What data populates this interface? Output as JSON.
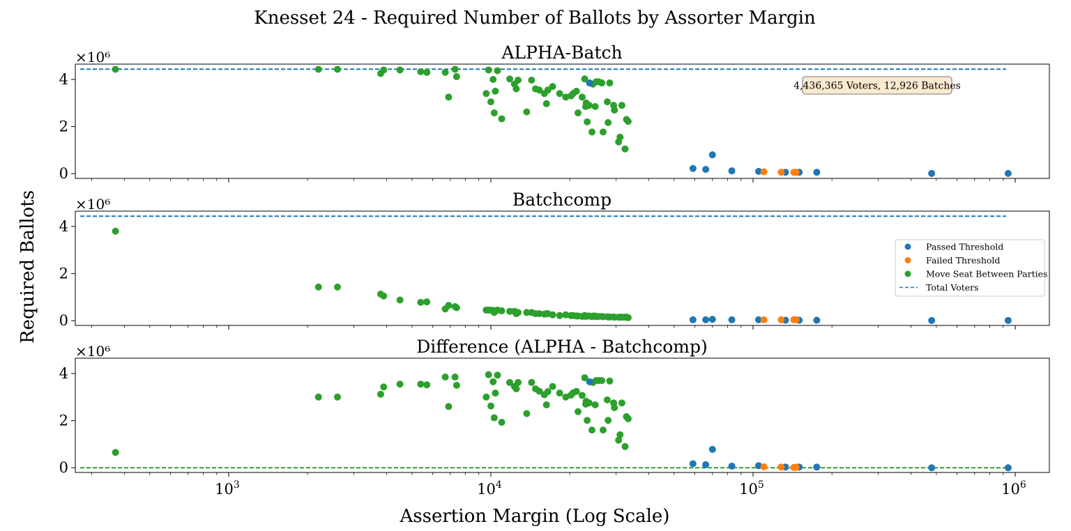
{
  "figure": {
    "title": "Knesset 24 - Required Number of Ballots by Assorter Margin",
    "xlabel": "Assertion Margin (Log Scale)",
    "ylabel": "Required Ballots",
    "colors": {
      "passed": "#1f77b4",
      "failed": "#ff7f0e",
      "move_seat": "#2ca02c",
      "total_line": "#1f77b4",
      "zero_line": "#2ca02c"
    },
    "legend": {
      "passed": "Passed Threshold",
      "failed": "Failed Threshold",
      "move_seat": "Move Seat Between Parties",
      "total_voters": "Total Voters"
    },
    "annotation": "4,436,365 Voters, 12,926 Batches",
    "y_multiplier": "×10⁶",
    "x_ticks": [
      {
        "base": "10",
        "exp": "3"
      },
      {
        "base": "10",
        "exp": "4"
      },
      {
        "base": "10",
        "exp": "5"
      },
      {
        "base": "10",
        "exp": "6"
      }
    ],
    "y_ticks": [
      "0",
      "2",
      "4"
    ]
  },
  "chart_data": [
    {
      "type": "scatter",
      "title": "ALPHA-Batch",
      "x_scale": "log",
      "xlim": [
        260,
        1350000
      ],
      "ylim": [
        -0.2,
        4.65
      ],
      "y_units": "×10^6 ballots",
      "reference_line": {
        "label": "Total Voters",
        "y": 4.436,
        "style": "dashed"
      },
      "annotation": "4,436,365 Voters, 12,926 Batches",
      "series": [
        {
          "name": "Move Seat Between Parties",
          "points": [
            [
              370,
              4.43
            ],
            [
              2200,
              4.43
            ],
            [
              2600,
              4.43
            ],
            [
              3800,
              4.25
            ],
            [
              3900,
              4.4
            ],
            [
              4500,
              4.4
            ],
            [
              5400,
              4.33
            ],
            [
              5700,
              4.3
            ],
            [
              6700,
              4.3
            ],
            [
              6900,
              3.25
            ],
            [
              7300,
              4.43
            ],
            [
              7400,
              4.12
            ],
            [
              9600,
              3.4
            ],
            [
              9800,
              4.4
            ],
            [
              10000,
              3.05
            ],
            [
              10200,
              4.0
            ],
            [
              10300,
              2.58
            ],
            [
              10400,
              3.5
            ],
            [
              10600,
              4.37
            ],
            [
              11000,
              2.33
            ],
            [
              11800,
              4.02
            ],
            [
              12300,
              3.8
            ],
            [
              12500,
              3.6
            ],
            [
              12700,
              3.97
            ],
            [
              13700,
              2.62
            ],
            [
              14300,
              3.97
            ],
            [
              14800,
              3.6
            ],
            [
              15300,
              3.55
            ],
            [
              16000,
              3.4
            ],
            [
              16300,
              2.97
            ],
            [
              16500,
              3.55
            ],
            [
              17200,
              3.7
            ],
            [
              18300,
              3.4
            ],
            [
              19300,
              3.25
            ],
            [
              20200,
              3.3
            ],
            [
              20600,
              3.4
            ],
            [
              21200,
              3.5
            ],
            [
              21500,
              2.58
            ],
            [
              22300,
              3.25
            ],
            [
              22800,
              4.02
            ],
            [
              23000,
              2.85
            ],
            [
              23100,
              3.0
            ],
            [
              23300,
              2.2
            ],
            [
              23700,
              2.9
            ],
            [
              24300,
              1.77
            ],
            [
              24500,
              3.8
            ],
            [
              25000,
              2.85
            ],
            [
              25200,
              3.9
            ],
            [
              25800,
              3.9
            ],
            [
              26500,
              3.85
            ],
            [
              26800,
              1.77
            ],
            [
              27800,
              3.05
            ],
            [
              28000,
              2.17
            ],
            [
              28400,
              3.85
            ],
            [
              29400,
              2.9
            ],
            [
              29600,
              2.7
            ],
            [
              30700,
              1.35
            ],
            [
              31100,
              1.55
            ],
            [
              31600,
              2.9
            ],
            [
              32500,
              1.05
            ],
            [
              32900,
              2.3
            ],
            [
              33400,
              2.22
            ]
          ]
        },
        {
          "name": "Passed Threshold",
          "points": [
            [
              23800,
              3.85
            ],
            [
              59000,
              0.22
            ],
            [
              66000,
              0.18
            ],
            [
              70000,
              0.8
            ],
            [
              83000,
              0.12
            ],
            [
              105000,
              0.1
            ],
            [
              133000,
              0.06
            ],
            [
              150000,
              0.06
            ],
            [
              175000,
              0.06
            ],
            [
              480000,
              0.01
            ],
            [
              940000,
              0.01
            ]
          ]
        },
        {
          "name": "Failed Threshold",
          "points": [
            [
              110000,
              0.08
            ],
            [
              128000,
              0.06
            ],
            [
              143000,
              0.06
            ],
            [
              146000,
              0.06
            ]
          ]
        }
      ]
    },
    {
      "type": "scatter",
      "title": "Batchcomp",
      "x_scale": "log",
      "xlim": [
        260,
        1350000
      ],
      "ylim": [
        -0.2,
        4.65
      ],
      "y_units": "×10^6 ballots",
      "reference_line": {
        "label": "Total Voters",
        "y": 4.436,
        "style": "dashed"
      },
      "legend_position": "right",
      "series": [
        {
          "name": "Move Seat Between Parties",
          "points": [
            [
              370,
              3.8
            ],
            [
              2200,
              1.43
            ],
            [
              2600,
              1.43
            ],
            [
              3800,
              1.13
            ],
            [
              3900,
              1.05
            ],
            [
              4500,
              0.88
            ],
            [
              5400,
              0.78
            ],
            [
              5700,
              0.8
            ],
            [
              6700,
              0.5
            ],
            [
              6900,
              0.65
            ],
            [
              7300,
              0.6
            ],
            [
              7400,
              0.55
            ],
            [
              9600,
              0.45
            ],
            [
              9800,
              0.45
            ],
            [
              10000,
              0.45
            ],
            [
              10200,
              0.44
            ],
            [
              10300,
              0.35
            ],
            [
              10400,
              0.42
            ],
            [
              10600,
              0.45
            ],
            [
              11000,
              0.42
            ],
            [
              11800,
              0.4
            ],
            [
              12300,
              0.4
            ],
            [
              12500,
              0.3
            ],
            [
              12700,
              0.35
            ],
            [
              13700,
              0.35
            ],
            [
              14300,
              0.35
            ],
            [
              14800,
              0.3
            ],
            [
              15300,
              0.3
            ],
            [
              16000,
              0.28
            ],
            [
              16300,
              0.3
            ],
            [
              16500,
              0.3
            ],
            [
              17200,
              0.25
            ],
            [
              18300,
              0.22
            ],
            [
              19300,
              0.25
            ],
            [
              20200,
              0.22
            ],
            [
              20600,
              0.22
            ],
            [
              21200,
              0.2
            ],
            [
              21500,
              0.2
            ],
            [
              22300,
              0.18
            ],
            [
              22800,
              0.22
            ],
            [
              23000,
              0.18
            ],
            [
              23100,
              0.2
            ],
            [
              23300,
              0.2
            ],
            [
              23700,
              0.2
            ],
            [
              24300,
              0.17
            ],
            [
              24500,
              0.2
            ],
            [
              25000,
              0.2
            ],
            [
              25200,
              0.17
            ],
            [
              25800,
              0.18
            ],
            [
              26500,
              0.18
            ],
            [
              26800,
              0.17
            ],
            [
              27800,
              0.17
            ],
            [
              28000,
              0.16
            ],
            [
              28400,
              0.16
            ],
            [
              29400,
              0.16
            ],
            [
              29600,
              0.15
            ],
            [
              30700,
              0.15
            ],
            [
              31100,
              0.15
            ],
            [
              31600,
              0.15
            ],
            [
              32500,
              0.15
            ],
            [
              32900,
              0.15
            ],
            [
              33400,
              0.13
            ]
          ]
        },
        {
          "name": "Passed Threshold",
          "points": [
            [
              59000,
              0.04
            ],
            [
              66000,
              0.04
            ],
            [
              70000,
              0.06
            ],
            [
              83000,
              0.04
            ],
            [
              105000,
              0.04
            ],
            [
              133000,
              0.02
            ],
            [
              150000,
              0.02
            ],
            [
              175000,
              0.02
            ],
            [
              480000,
              0.01
            ],
            [
              940000,
              0.01
            ]
          ]
        },
        {
          "name": "Failed Threshold",
          "points": [
            [
              110000,
              0.04
            ],
            [
              128000,
              0.04
            ],
            [
              143000,
              0.04
            ],
            [
              146000,
              0.04
            ]
          ]
        }
      ]
    },
    {
      "type": "scatter",
      "title": "Difference (ALPHA - Batchcomp)",
      "x_scale": "log",
      "xlim": [
        260,
        1350000
      ],
      "ylim": [
        -0.2,
        4.65
      ],
      "y_units": "×10^6 ballots",
      "reference_line": {
        "y": 0,
        "style": "dashed"
      },
      "series": [
        {
          "name": "Move Seat Between Parties",
          "points": [
            [
              370,
              0.65
            ],
            [
              2200,
              3.0
            ],
            [
              2600,
              3.0
            ],
            [
              3800,
              3.12
            ],
            [
              3900,
              3.43
            ],
            [
              4500,
              3.55
            ],
            [
              5400,
              3.55
            ],
            [
              5700,
              3.52
            ],
            [
              6700,
              3.85
            ],
            [
              6900,
              2.6
            ],
            [
              7300,
              3.85
            ],
            [
              7400,
              3.5
            ],
            [
              9600,
              3.0
            ],
            [
              9800,
              3.95
            ],
            [
              10000,
              2.62
            ],
            [
              10200,
              3.65
            ],
            [
              10300,
              2.12
            ],
            [
              10400,
              3.17
            ],
            [
              10600,
              3.93
            ],
            [
              11000,
              1.93
            ],
            [
              11800,
              3.62
            ],
            [
              12300,
              3.45
            ],
            [
              12500,
              3.35
            ],
            [
              12700,
              3.62
            ],
            [
              13700,
              2.3
            ],
            [
              14300,
              3.62
            ],
            [
              14800,
              3.35
            ],
            [
              15300,
              3.25
            ],
            [
              16000,
              3.1
            ],
            [
              16300,
              2.67
            ],
            [
              16500,
              3.23
            ],
            [
              17200,
              3.45
            ],
            [
              18300,
              3.17
            ],
            [
              19300,
              3.0
            ],
            [
              20200,
              3.08
            ],
            [
              20600,
              3.18
            ],
            [
              21200,
              3.24
            ],
            [
              21500,
              2.38
            ],
            [
              22300,
              3.07
            ],
            [
              22800,
              3.82
            ],
            [
              23000,
              2.7
            ],
            [
              23100,
              2.82
            ],
            [
              23300,
              2.01
            ],
            [
              23700,
              2.75
            ],
            [
              24300,
              1.6
            ],
            [
              24500,
              3.62
            ],
            [
              25000,
              2.67
            ],
            [
              25200,
              3.7
            ],
            [
              25800,
              3.7
            ],
            [
              26500,
              3.7
            ],
            [
              26800,
              1.6
            ],
            [
              27800,
              2.88
            ],
            [
              28000,
              2.01
            ],
            [
              28400,
              3.68
            ],
            [
              29400,
              2.75
            ],
            [
              29600,
              2.55
            ],
            [
              30700,
              1.17
            ],
            [
              31100,
              1.4
            ],
            [
              31600,
              2.75
            ],
            [
              32500,
              0.9
            ],
            [
              32900,
              2.17
            ],
            [
              33400,
              2.08
            ]
          ]
        },
        {
          "name": "Passed Threshold",
          "points": [
            [
              23800,
              3.65
            ],
            [
              59000,
              0.17
            ],
            [
              66000,
              0.13
            ],
            [
              70000,
              0.78
            ],
            [
              83000,
              0.07
            ],
            [
              105000,
              0.09
            ],
            [
              133000,
              0.03
            ],
            [
              150000,
              0.03
            ],
            [
              175000,
              0.03
            ],
            [
              480000,
              0.0
            ],
            [
              940000,
              0.0
            ]
          ]
        },
        {
          "name": "Failed Threshold",
          "points": [
            [
              110000,
              0.04
            ],
            [
              128000,
              0.03
            ],
            [
              143000,
              0.01
            ],
            [
              146000,
              0.02
            ]
          ]
        }
      ]
    }
  ]
}
